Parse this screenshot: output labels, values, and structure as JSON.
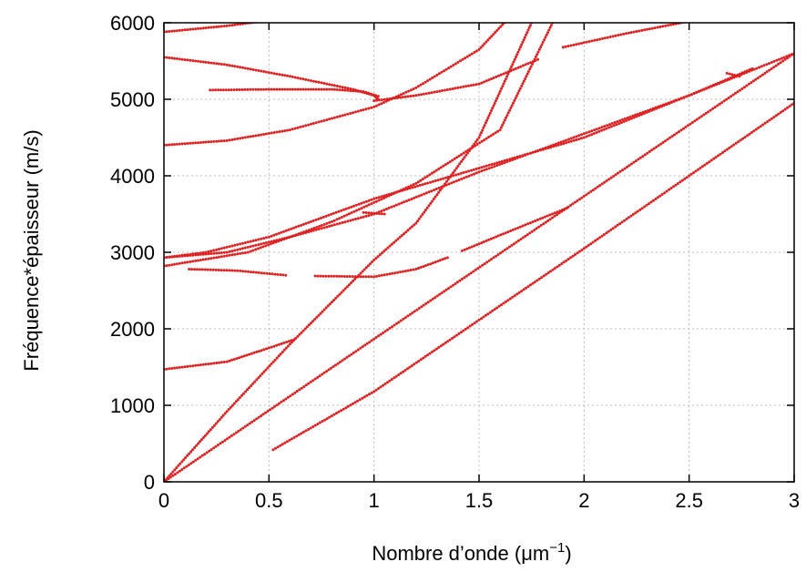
{
  "chart_data": {
    "type": "scatter",
    "title": "",
    "xlabel_prefix": "Nombre d’onde (",
    "xlabel_unit": "μm",
    "xlabel_exp": "−1",
    "xlabel_suffix": ")",
    "ylabel": "Fréquence*épaisseur (m/s)",
    "xlim": [
      0,
      3
    ],
    "ylim": [
      0,
      6000
    ],
    "xticks": [
      0,
      0.5,
      1,
      1.5,
      2,
      2.5,
      3
    ],
    "xtick_labels": [
      "0",
      "0.5",
      "1",
      "1.5",
      "2",
      "2.5",
      "3"
    ],
    "yticks": [
      0,
      1000,
      2000,
      3000,
      4000,
      5000,
      6000
    ],
    "ytick_labels": [
      "0",
      "1000",
      "2000",
      "3000",
      "4000",
      "5000",
      "6000"
    ],
    "grid": true,
    "color": "#e02020",
    "series": [
      {
        "x": [
          0,
          3
        ],
        "y": [
          0,
          5600
        ]
      },
      {
        "x": [
          0.52,
          1.0,
          2.0,
          3.0
        ],
        "y": [
          420,
          1180,
          3050,
          4950
        ]
      },
      {
        "x": [
          0,
          0.3,
          0.6,
          1.0,
          1.2,
          1.5,
          1.75
        ],
        "y": [
          0,
          920,
          1800,
          2900,
          3380,
          4500,
          6000
        ]
      },
      {
        "x": [
          0,
          0.3,
          0.5,
          0.62
        ],
        "y": [
          1470,
          1570,
          1750,
          1860
        ]
      },
      {
        "x": [
          0,
          0.3,
          0.6,
          1.0,
          1.5,
          2.0,
          2.5,
          2.8
        ],
        "y": [
          2930,
          3000,
          3200,
          3500,
          4050,
          4550,
          5050,
          5400
        ]
      },
      {
        "x": [
          0,
          0.2,
          0.5,
          0.7,
          1.0,
          1.5,
          2.0,
          2.5,
          3.0
        ],
        "y": [
          2930,
          3000,
          3200,
          3400,
          3700,
          4100,
          4500,
          5050,
          5600
        ]
      },
      {
        "x": [
          0,
          0.3,
          0.6,
          1.0,
          1.2,
          1.5,
          1.62
        ],
        "y": [
          4400,
          4460,
          4600,
          4900,
          5150,
          5650,
          6000
        ]
      },
      {
        "x": [
          0,
          0.3,
          0.6,
          0.9,
          1.0,
          1.02
        ],
        "y": [
          5550,
          5450,
          5300,
          5130,
          5050,
          5000
        ]
      },
      {
        "x": [
          0.22,
          0.5,
          0.8,
          0.95,
          1.02
        ],
        "y": [
          5120,
          5130,
          5130,
          5100,
          5040
        ]
      },
      {
        "x": [
          1.0,
          1.2,
          1.5,
          1.78
        ],
        "y": [
          4980,
          5050,
          5200,
          5520
        ]
      },
      {
        "x": [
          0,
          0.4,
          0.8,
          1.2,
          1.6,
          1.85
        ],
        "y": [
          2820,
          3000,
          3400,
          3900,
          4600,
          6000
        ]
      },
      {
        "x": [
          0.12,
          0.35,
          0.58
        ],
        "y": [
          2780,
          2760,
          2700
        ]
      },
      {
        "x": [
          0.72,
          1.0,
          1.2,
          1.35
        ],
        "y": [
          2690,
          2680,
          2780,
          2930
        ]
      },
      {
        "x": [
          1.42,
          1.65,
          1.92
        ],
        "y": [
          3020,
          3280,
          3580
        ]
      },
      {
        "x": [
          1.9,
          2.2,
          2.5,
          2.8
        ],
        "y": [
          5680,
          5860,
          6020,
          6100
        ]
      },
      {
        "x": [
          0,
          0.3,
          0.5
        ],
        "y": [
          5880,
          5960,
          6030
        ]
      },
      {
        "x": [
          0.95,
          1.05
        ],
        "y": [
          3520,
          3500
        ]
      },
      {
        "x": [
          2.68,
          2.74
        ],
        "y": [
          5340,
          5300
        ]
      }
    ]
  }
}
